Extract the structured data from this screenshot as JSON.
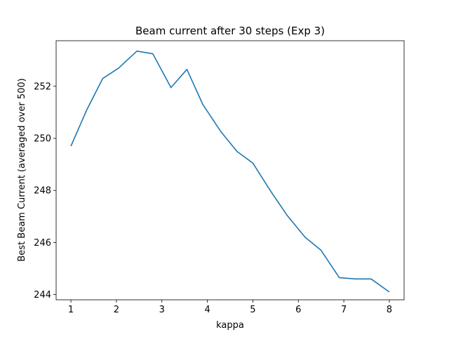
{
  "chart_data": {
    "type": "line",
    "title": "Beam current after 30 steps (Exp 3)",
    "xlabel": "kappa",
    "ylabel": "Best Beam Current (averaged over 500)",
    "xlim": [
      0.675,
      8.325
    ],
    "ylim": [
      243.8,
      253.75
    ],
    "xticks": [
      1,
      2,
      3,
      4,
      5,
      6,
      7,
      8
    ],
    "yticks": [
      244,
      246,
      248,
      250,
      252
    ],
    "grid": false,
    "line_color": "#1f77b4",
    "series": [
      {
        "x": [
          1.0,
          1.35,
          1.7,
          2.05,
          2.45,
          2.8,
          3.2,
          3.55,
          3.9,
          4.3,
          4.65,
          5.0,
          5.4,
          5.75,
          6.15,
          6.5,
          6.9,
          7.25,
          7.6,
          8.0
        ],
        "values": [
          249.7,
          251.1,
          252.3,
          252.7,
          253.35,
          253.25,
          251.95,
          252.65,
          251.3,
          250.25,
          249.5,
          249.05,
          247.95,
          247.05,
          246.2,
          245.7,
          244.65,
          244.6,
          244.6,
          244.1
        ]
      }
    ]
  }
}
